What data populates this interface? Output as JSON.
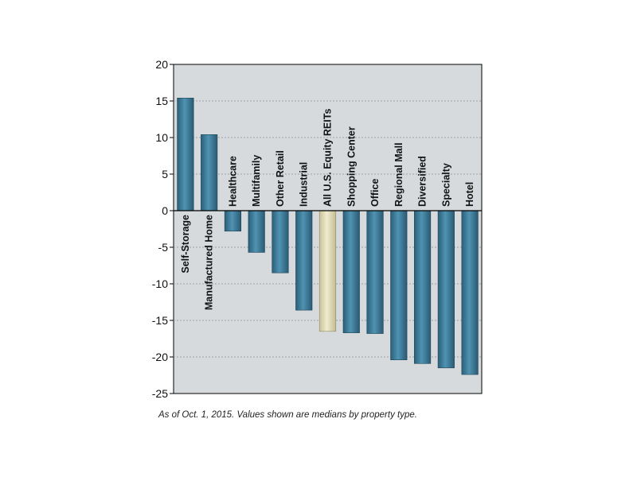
{
  "caption": "As of Oct. 1, 2015. Values shown are medians by property type.",
  "chart_data": {
    "type": "bar",
    "title": "",
    "xlabel": "",
    "ylabel": "",
    "ylim": [
      -25,
      20
    ],
    "yticks": [
      20,
      15,
      10,
      5,
      0,
      -5,
      -10,
      -15,
      -20,
      -25
    ],
    "grid": true,
    "categories": [
      "Self-Storage",
      "Manufactured Home",
      "Healthcare",
      "Multifamily",
      "Other Retail",
      "Industrial",
      "All U.S. Equity REITs",
      "Shopping Center",
      "Office",
      "Regional Mall",
      "Diversified",
      "Specialty",
      "Hotel"
    ],
    "values": [
      15.4,
      10.4,
      -2.8,
      -5.7,
      -8.5,
      -13.6,
      -16.5,
      -16.7,
      -16.8,
      -20.4,
      -20.9,
      -21.5,
      -22.4
    ],
    "highlight_category": "All U.S. Equity REITs",
    "colors": {
      "plot_background": "#d6dadd",
      "bar": "#3f7f9e",
      "bar_highlight": "#e2dcb8",
      "grid": "#9aa0a4",
      "axis": "#000000"
    }
  }
}
